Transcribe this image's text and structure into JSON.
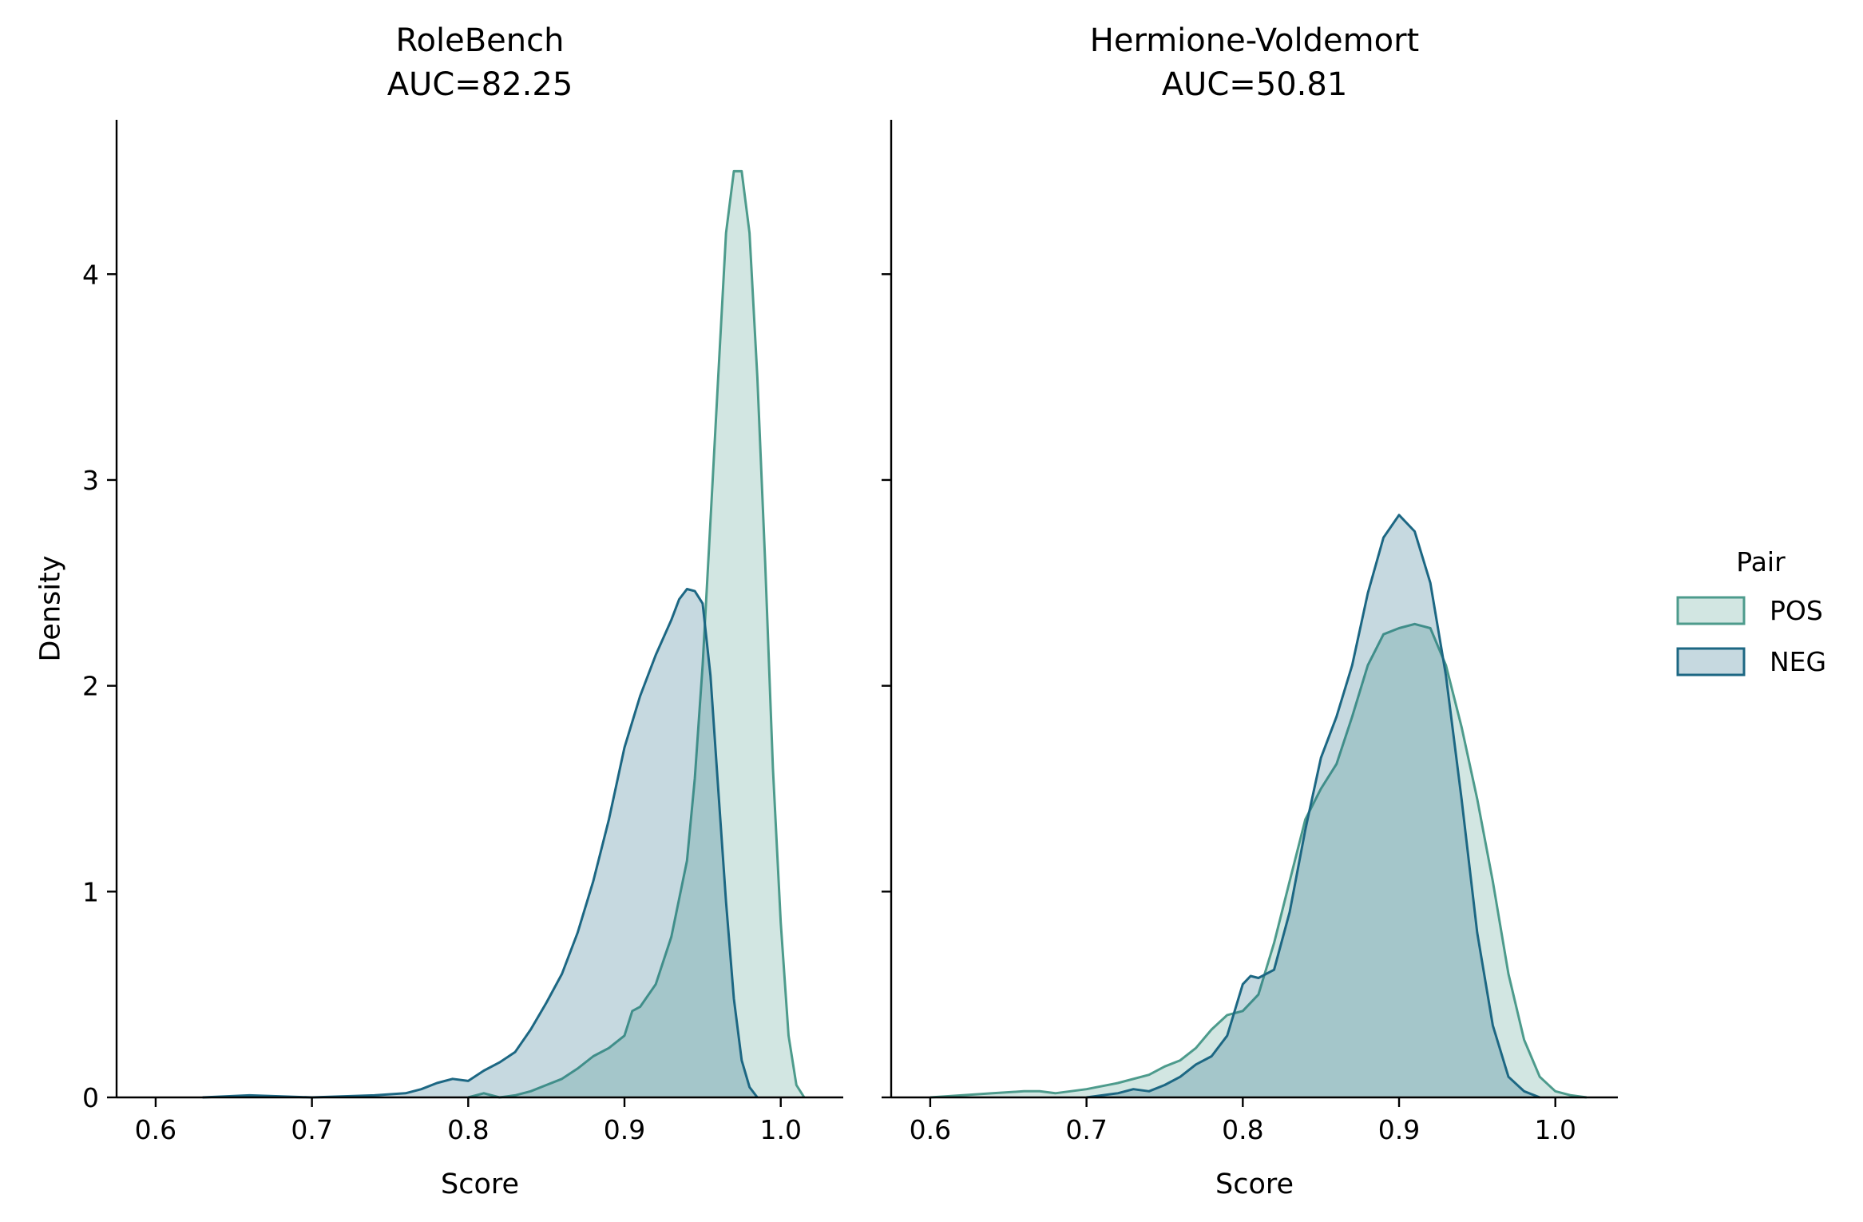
{
  "figure": {
    "legend": {
      "title": "Pair",
      "placement": "right",
      "entries": [
        {
          "label": "POS",
          "color": "#4d9b8c"
        },
        {
          "label": "NEG",
          "color": "#1c6783"
        }
      ]
    }
  },
  "chart_data": [
    {
      "type": "area",
      "title": "RoleBench",
      "subtitle": "AUC=82.25",
      "xlabel": "Score",
      "ylabel": "Density",
      "xlim": [
        0.575,
        1.04
      ],
      "ylim": [
        0,
        4.75
      ],
      "xticks": [
        0.6,
        0.7,
        0.8,
        0.9,
        1.0
      ],
      "xtick_labels": [
        "0.6",
        "0.7",
        "0.8",
        "0.9",
        "1.0"
      ],
      "yticks": [
        0,
        1,
        2,
        3,
        4
      ],
      "ytick_labels": [
        "0",
        "1",
        "2",
        "3",
        "4"
      ],
      "grid": false,
      "series": [
        {
          "name": "POS",
          "color": "#4d9b8c",
          "x": [
            0.8,
            0.81,
            0.82,
            0.83,
            0.84,
            0.85,
            0.86,
            0.87,
            0.88,
            0.89,
            0.9,
            0.905,
            0.91,
            0.92,
            0.93,
            0.94,
            0.945,
            0.95,
            0.955,
            0.96,
            0.965,
            0.97,
            0.975,
            0.98,
            0.985,
            0.99,
            0.995,
            1.0,
            1.005,
            1.01,
            1.015
          ],
          "y": [
            0.0,
            0.02,
            0.0,
            0.01,
            0.03,
            0.06,
            0.09,
            0.14,
            0.2,
            0.24,
            0.3,
            0.42,
            0.44,
            0.55,
            0.78,
            1.15,
            1.55,
            2.1,
            2.8,
            3.5,
            4.2,
            4.5,
            4.5,
            4.2,
            3.5,
            2.6,
            1.6,
            0.85,
            0.3,
            0.06,
            0.0
          ]
        },
        {
          "name": "NEG",
          "color": "#1c6783",
          "x": [
            0.63,
            0.66,
            0.7,
            0.74,
            0.76,
            0.77,
            0.78,
            0.79,
            0.8,
            0.81,
            0.82,
            0.83,
            0.84,
            0.85,
            0.86,
            0.87,
            0.88,
            0.89,
            0.9,
            0.91,
            0.92,
            0.93,
            0.935,
            0.94,
            0.945,
            0.95,
            0.955,
            0.96,
            0.965,
            0.97,
            0.975,
            0.98,
            0.985
          ],
          "y": [
            0.0,
            0.01,
            0.0,
            0.01,
            0.02,
            0.04,
            0.07,
            0.09,
            0.08,
            0.13,
            0.17,
            0.22,
            0.33,
            0.46,
            0.6,
            0.8,
            1.05,
            1.35,
            1.7,
            1.95,
            2.15,
            2.32,
            2.42,
            2.47,
            2.46,
            2.4,
            2.05,
            1.5,
            0.95,
            0.48,
            0.18,
            0.05,
            0.0
          ]
        }
      ]
    },
    {
      "type": "area",
      "title": "Hermione-Voldemort",
      "subtitle": "AUC=50.81",
      "xlabel": "Score",
      "ylabel": "",
      "xlim": [
        0.575,
        1.04
      ],
      "ylim": [
        0,
        4.75
      ],
      "xticks": [
        0.6,
        0.7,
        0.8,
        0.9,
        1.0
      ],
      "xtick_labels": [
        "0.6",
        "0.7",
        "0.8",
        "0.9",
        "1.0"
      ],
      "yticks": [
        0,
        1,
        2,
        3,
        4
      ],
      "ytick_labels": [],
      "grid": false,
      "series": [
        {
          "name": "POS",
          "color": "#4d9b8c",
          "x": [
            0.6,
            0.62,
            0.64,
            0.66,
            0.67,
            0.68,
            0.7,
            0.72,
            0.74,
            0.75,
            0.76,
            0.77,
            0.78,
            0.79,
            0.8,
            0.81,
            0.82,
            0.83,
            0.84,
            0.85,
            0.86,
            0.87,
            0.88,
            0.89,
            0.9,
            0.91,
            0.92,
            0.93,
            0.94,
            0.95,
            0.96,
            0.97,
            0.98,
            0.99,
            1.0,
            1.01,
            1.02
          ],
          "y": [
            0.0,
            0.01,
            0.02,
            0.03,
            0.03,
            0.02,
            0.04,
            0.07,
            0.11,
            0.15,
            0.18,
            0.24,
            0.33,
            0.4,
            0.42,
            0.5,
            0.75,
            1.05,
            1.35,
            1.5,
            1.62,
            1.85,
            2.1,
            2.25,
            2.28,
            2.3,
            2.28,
            2.1,
            1.8,
            1.45,
            1.05,
            0.6,
            0.28,
            0.1,
            0.03,
            0.01,
            0.0
          ]
        },
        {
          "name": "NEG",
          "color": "#1c6783",
          "x": [
            0.7,
            0.72,
            0.73,
            0.74,
            0.75,
            0.76,
            0.77,
            0.78,
            0.79,
            0.8,
            0.805,
            0.81,
            0.82,
            0.83,
            0.84,
            0.85,
            0.86,
            0.87,
            0.88,
            0.89,
            0.9,
            0.91,
            0.92,
            0.93,
            0.94,
            0.95,
            0.96,
            0.97,
            0.98,
            0.99
          ],
          "y": [
            0.0,
            0.02,
            0.04,
            0.03,
            0.06,
            0.1,
            0.16,
            0.2,
            0.3,
            0.55,
            0.59,
            0.58,
            0.62,
            0.9,
            1.3,
            1.65,
            1.85,
            2.1,
            2.45,
            2.72,
            2.83,
            2.75,
            2.5,
            2.05,
            1.45,
            0.8,
            0.35,
            0.1,
            0.03,
            0.0
          ]
        }
      ]
    }
  ]
}
